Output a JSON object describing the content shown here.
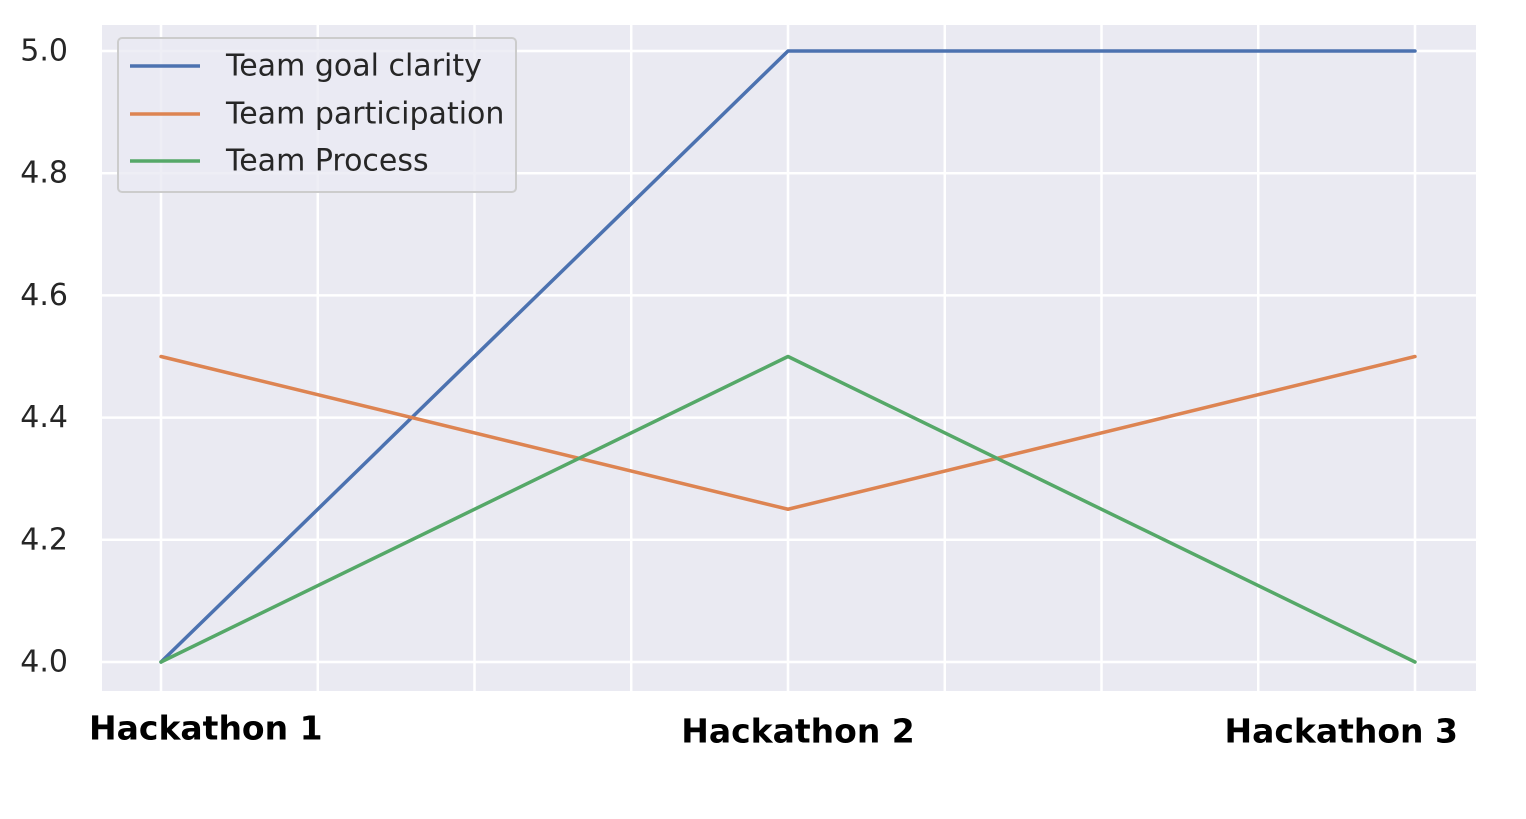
{
  "chart_data": {
    "type": "line",
    "title": "",
    "xlabel": "",
    "ylabel": "",
    "categories": [
      "Hackathon 1",
      "Hackathon 2",
      "Hackathon 3"
    ],
    "ylim": [
      3.96,
      5.04
    ],
    "yticks": [
      4.0,
      4.2,
      4.4,
      4.6,
      4.8,
      5.0
    ],
    "ytick_labels": [
      "4.0",
      "4.2",
      "4.4",
      "4.6",
      "4.8",
      "5.0"
    ],
    "grid": true,
    "legend_position": "top-left",
    "background": "#eaeaf2",
    "series": [
      {
        "name": "Team goal clarity",
        "color": "#4c72b0",
        "values": [
          4.0,
          5.0,
          5.0
        ]
      },
      {
        "name": "Team participation",
        "color": "#dd8452",
        "values": [
          4.5,
          4.25,
          4.5
        ]
      },
      {
        "name": "Team Process",
        "color": "#55a868",
        "values": [
          4.0,
          4.5,
          4.0
        ]
      }
    ]
  }
}
